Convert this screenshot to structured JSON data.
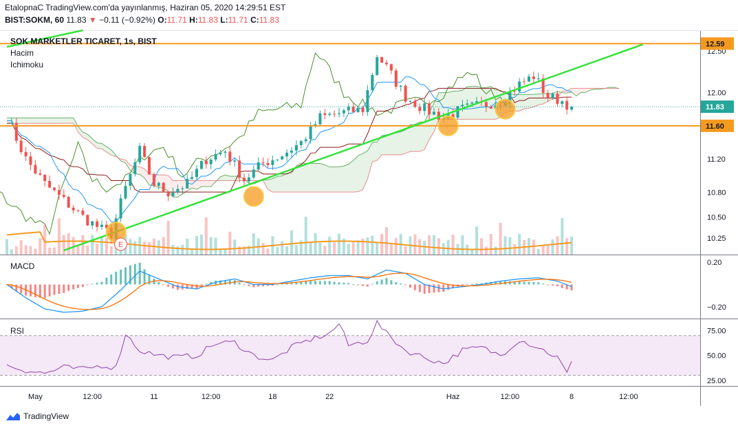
{
  "header": {
    "line1": "EtalopnaC TradingView.com'da yayınlanmış, Haziran 05, 2020 14:29:51 EST",
    "symbol": "BIST:SOKM, 60",
    "last": "11.83",
    "change": "−0.11 (−0.92%)",
    "o_label": "O:",
    "o_val": "11.71",
    "h_label": "H:",
    "h_val": "11.83",
    "l_label": "L:",
    "l_val": "11.71",
    "c_label": "C:",
    "c_val": "11.83"
  },
  "main_pane": {
    "title": "SOK MARKETLER TICARET, 1s, BIST",
    "indicator1": "Hacim",
    "indicator2": "Ichimoku"
  },
  "macd_pane": {
    "title": "MACD"
  },
  "rsi_pane": {
    "title": "RSI"
  },
  "footer": {
    "brand": "TradingView"
  },
  "event_marker": {
    "label": "E"
  },
  "colors": {
    "up": "#26a69a",
    "down": "#ef5350",
    "orange": "#f59a1f",
    "trend": "#33e339",
    "kumo_green": "#43a047",
    "kumo_red": "#e57373",
    "tenkan": "#2196f3",
    "kijun": "#8b1a1a",
    "chikou": "#4a8f2a",
    "macd": "#2196f3",
    "signal": "#ff6d00",
    "rsi": "#8e44ad"
  },
  "chart_data": [
    {
      "type": "candlestick",
      "name": "price",
      "ylim": [
        10.05,
        12.75
      ],
      "y_ticks": [
        10.25,
        10.5,
        10.8,
        11.2,
        12.0,
        12.5
      ],
      "y_tick_labels": [
        "10.25",
        "10.50",
        "10.80",
        "11.20",
        "12.00",
        "12.50"
      ],
      "x_labels": [
        "May",
        "12:00",
        "11",
        "12:00",
        "18",
        "22",
        "Haz",
        "12:00",
        "8",
        "12:00"
      ],
      "x_label_bar": [
        6,
        18,
        31,
        43,
        56,
        68,
        94,
        106,
        119,
        131
      ],
      "n_bars": 120,
      "horizontal_levels": [
        {
          "value": 12.59,
          "label": "12.59"
        },
        {
          "value": 11.6,
          "label": "11.60"
        }
      ],
      "last_price": {
        "value": 11.83,
        "label": "11.83"
      },
      "close_keypoints": [
        [
          0,
          11.7
        ],
        [
          4,
          11.2
        ],
        [
          8,
          10.9
        ],
        [
          12,
          10.7
        ],
        [
          16,
          10.5
        ],
        [
          20,
          10.35
        ],
        [
          22,
          10.3
        ],
        [
          25,
          10.85
        ],
        [
          28,
          11.3
        ],
        [
          31,
          10.9
        ],
        [
          34,
          10.8
        ],
        [
          38,
          10.9
        ],
        [
          42,
          11.2
        ],
        [
          46,
          11.3
        ],
        [
          50,
          10.95
        ],
        [
          54,
          11.15
        ],
        [
          58,
          11.25
        ],
        [
          62,
          11.4
        ],
        [
          66,
          11.7
        ],
        [
          70,
          11.75
        ],
        [
          75,
          11.8
        ],
        [
          78,
          12.45
        ],
        [
          80,
          12.3
        ],
        [
          84,
          11.95
        ],
        [
          88,
          11.8
        ],
        [
          92,
          11.7
        ],
        [
          96,
          11.8
        ],
        [
          100,
          11.85
        ],
        [
          104,
          11.9
        ],
        [
          108,
          12.1
        ],
        [
          111,
          12.2
        ],
        [
          114,
          11.95
        ],
        [
          117,
          11.9
        ],
        [
          119,
          11.83
        ]
      ],
      "trendlines": [
        {
          "points": [
            [
              12,
              10.1
            ],
            [
              134,
              12.58
            ]
          ]
        },
        {
          "points": [
            [
              0,
              12.55
            ],
            [
              16,
              12.75
            ]
          ]
        }
      ],
      "highlight_circles": [
        {
          "bar": 23,
          "value": 10.32
        },
        {
          "bar": 52,
          "value": 10.75
        },
        {
          "bar": 93,
          "value": 11.6
        },
        {
          "bar": 105,
          "value": 11.8
        }
      ]
    },
    {
      "type": "bar",
      "name": "volume",
      "ylim": [
        0,
        1
      ],
      "ma_level": 0.25
    },
    {
      "type": "line",
      "name": "MACD",
      "ylim": [
        -0.3,
        0.25
      ],
      "y_ticks": [
        0.2,
        -0.2
      ],
      "y_tick_labels": [
        "0.20",
        "−0.20"
      ],
      "macd_keypoints": [
        [
          0,
          0.0
        ],
        [
          4,
          -0.12
        ],
        [
          8,
          -0.22
        ],
        [
          12,
          -0.25
        ],
        [
          16,
          -0.24
        ],
        [
          20,
          -0.2
        ],
        [
          24,
          -0.05
        ],
        [
          28,
          0.12
        ],
        [
          32,
          0.05
        ],
        [
          36,
          -0.02
        ],
        [
          40,
          -0.04
        ],
        [
          44,
          0.02
        ],
        [
          48,
          0.05
        ],
        [
          52,
          0.0
        ],
        [
          56,
          0.0
        ],
        [
          60,
          0.03
        ],
        [
          64,
          0.06
        ],
        [
          68,
          0.08
        ],
        [
          72,
          0.08
        ],
        [
          76,
          0.05
        ],
        [
          80,
          0.13
        ],
        [
          84,
          0.1
        ],
        [
          88,
          0.0
        ],
        [
          92,
          -0.04
        ],
        [
          96,
          -0.02
        ],
        [
          100,
          0.0
        ],
        [
          104,
          0.03
        ],
        [
          108,
          0.05
        ],
        [
          112,
          0.06
        ],
        [
          116,
          0.03
        ],
        [
          119,
          -0.02
        ]
      ]
    },
    {
      "type": "line",
      "name": "RSI",
      "ylim": [
        20,
        85
      ],
      "y_ticks": [
        75,
        50,
        25
      ],
      "y_tick_labels": [
        "75.00",
        "50.00",
        "25.00"
      ],
      "band": [
        30,
        70
      ],
      "rsi_keypoints": [
        [
          0,
          40
        ],
        [
          4,
          35
        ],
        [
          8,
          32
        ],
        [
          12,
          38
        ],
        [
          16,
          36
        ],
        [
          20,
          40
        ],
        [
          23,
          38
        ],
        [
          25,
          72
        ],
        [
          28,
          55
        ],
        [
          32,
          50
        ],
        [
          36,
          48
        ],
        [
          40,
          50
        ],
        [
          44,
          62
        ],
        [
          48,
          63
        ],
        [
          52,
          50
        ],
        [
          56,
          45
        ],
        [
          60,
          58
        ],
        [
          64,
          66
        ],
        [
          68,
          72
        ],
        [
          70,
          82
        ],
        [
          72,
          60
        ],
        [
          76,
          65
        ],
        [
          78,
          83
        ],
        [
          80,
          72
        ],
        [
          84,
          55
        ],
        [
          88,
          48
        ],
        [
          92,
          42
        ],
        [
          96,
          55
        ],
        [
          100,
          58
        ],
        [
          104,
          50
        ],
        [
          108,
          66
        ],
        [
          112,
          58
        ],
        [
          116,
          48
        ],
        [
          118,
          32
        ],
        [
          119,
          42
        ]
      ]
    }
  ]
}
